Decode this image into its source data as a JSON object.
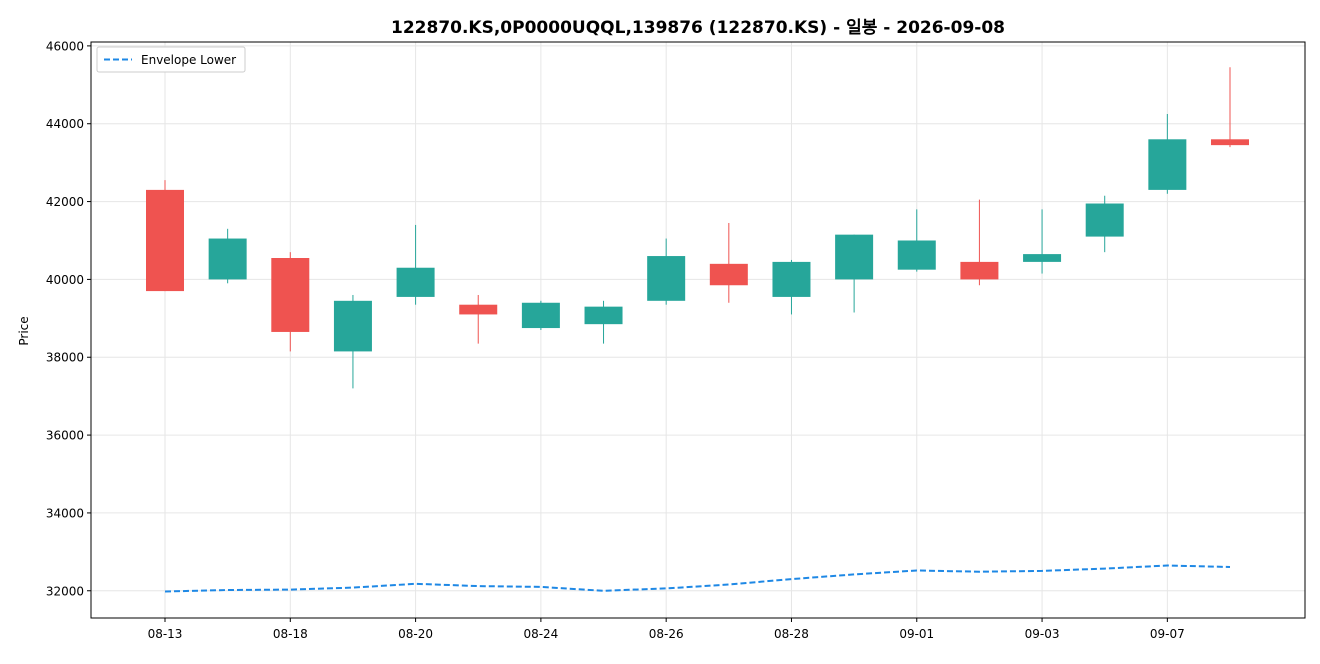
{
  "chart_data": {
    "type": "candlestick",
    "title": "122870.KS,0P0000UQQL,139876 (122870.KS) - 일봉 - 2026-09-08",
    "xlabel": "",
    "ylabel": "Price",
    "ylim": [
      31300,
      46100
    ],
    "yticks": [
      32000,
      34000,
      36000,
      38000,
      40000,
      42000,
      44000,
      46000
    ],
    "xtick_labels": [
      "08-13",
      "08-18",
      "08-20",
      "08-24",
      "08-26",
      "08-28",
      "09-01",
      "09-03",
      "09-07"
    ],
    "xtick_positions": [
      0,
      2,
      4,
      6,
      8,
      10,
      12,
      14,
      16
    ],
    "grid": true,
    "legend": {
      "placement": "top-left",
      "entries": [
        "Envelope Lower"
      ]
    },
    "colors": {
      "up": "#26a69a",
      "down": "#ef5350",
      "envelope": "#1e88e5"
    },
    "candles": [
      {
        "open": 42300,
        "high": 42550,
        "low": 39700,
        "close": 39700
      },
      {
        "open": 40000,
        "high": 41300,
        "low": 39900,
        "close": 41050
      },
      {
        "open": 40550,
        "high": 40700,
        "low": 38150,
        "close": 38650
      },
      {
        "open": 38150,
        "high": 39600,
        "low": 37200,
        "close": 39450
      },
      {
        "open": 39550,
        "high": 41400,
        "low": 39350,
        "close": 40300
      },
      {
        "open": 39350,
        "high": 39600,
        "low": 38350,
        "close": 39100
      },
      {
        "open": 38750,
        "high": 39450,
        "low": 38700,
        "close": 39400
      },
      {
        "open": 38850,
        "high": 39450,
        "low": 38350,
        "close": 39300
      },
      {
        "open": 39450,
        "high": 41050,
        "low": 39350,
        "close": 40600
      },
      {
        "open": 40400,
        "high": 41450,
        "low": 39400,
        "close": 39850
      },
      {
        "open": 39550,
        "high": 40500,
        "low": 39100,
        "close": 40450
      },
      {
        "open": 40000,
        "high": 41150,
        "low": 39150,
        "close": 41150
      },
      {
        "open": 40250,
        "high": 41800,
        "low": 40200,
        "close": 41000
      },
      {
        "open": 40450,
        "high": 42050,
        "low": 39850,
        "close": 40000
      },
      {
        "open": 40450,
        "high": 41800,
        "low": 40150,
        "close": 40650
      },
      {
        "open": 41100,
        "high": 42150,
        "low": 40700,
        "close": 41950
      },
      {
        "open": 42300,
        "high": 44250,
        "low": 42200,
        "close": 43600
      },
      {
        "open": 43600,
        "high": 45450,
        "low": 43400,
        "close": 43450
      }
    ],
    "series": [
      {
        "name": "Envelope Lower",
        "values": [
          31980,
          32020,
          32030,
          32080,
          32180,
          32120,
          32100,
          32000,
          32060,
          32160,
          32300,
          32420,
          32520,
          32490,
          32510,
          32570,
          32650,
          32610
        ]
      }
    ]
  }
}
